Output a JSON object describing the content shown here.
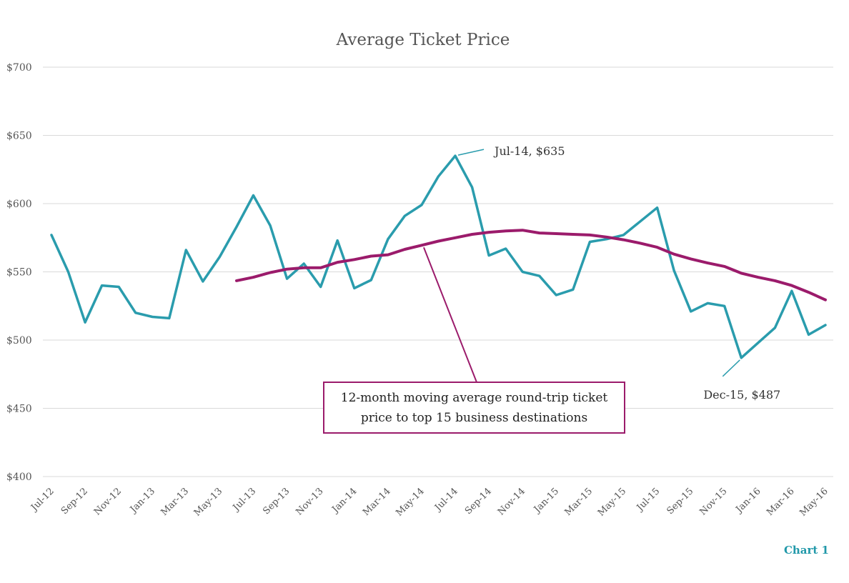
{
  "footer_label": "Chart 1",
  "colors": {
    "actual": "#2a9cad",
    "moving_average": "#9b1b6b",
    "grid": "#d9d9d9",
    "text": "#555555",
    "footer": "#2098a9"
  },
  "chart_data": {
    "type": "line",
    "title": "Average Ticket Price",
    "xlabel": "",
    "ylabel": "",
    "ylim": [
      400,
      700
    ],
    "yticks": [
      "$400",
      "$450",
      "$500",
      "$550",
      "$600",
      "$650",
      "$700"
    ],
    "grid": true,
    "x_tick_labels": [
      "Jul-12",
      "Sep-12",
      "Nov-12",
      "Jan-13",
      "Mar-13",
      "May-13",
      "Jul-13",
      "Sep-13",
      "Nov-13",
      "Jan-14",
      "Mar-14",
      "May-14",
      "Jul-14",
      "Sep-14",
      "Nov-14",
      "Jan-15",
      "Mar-15",
      "May-15",
      "Jul-15",
      "Sep-15",
      "Nov-15",
      "Jan-16",
      "Mar-16",
      "May-16"
    ],
    "categories": [
      "Jul-12",
      "Aug-12",
      "Sep-12",
      "Oct-12",
      "Nov-12",
      "Dec-12",
      "Jan-13",
      "Feb-13",
      "Mar-13",
      "Apr-13",
      "May-13",
      "Jun-13",
      "Jul-13",
      "Aug-13",
      "Sep-13",
      "Oct-13",
      "Nov-13",
      "Dec-13",
      "Jan-14",
      "Feb-14",
      "Mar-14",
      "Apr-14",
      "May-14",
      "Jun-14",
      "Jul-14",
      "Aug-14",
      "Sep-14",
      "Oct-14",
      "Nov-14",
      "Dec-14",
      "Jan-15",
      "Feb-15",
      "Mar-15",
      "Apr-15",
      "May-15",
      "Jun-15",
      "Jul-15",
      "Aug-15",
      "Sep-15",
      "Oct-15",
      "Nov-15",
      "Dec-15",
      "Jan-16",
      "Feb-16",
      "Mar-16",
      "Apr-16",
      "May-16"
    ],
    "series": [
      {
        "values": [
          577,
          550,
          513,
          540,
          539,
          520,
          517,
          516,
          566,
          543,
          561,
          583,
          606,
          584,
          545,
          556,
          539,
          573,
          538,
          544,
          574,
          591,
          599,
          620,
          635,
          612,
          562,
          567,
          550,
          547,
          533,
          537,
          572,
          574,
          577,
          587,
          597,
          551,
          521,
          527,
          525,
          487,
          498,
          509,
          536,
          504,
          511
        ]
      },
      {
        "values": [
          null,
          null,
          null,
          null,
          null,
          null,
          null,
          null,
          null,
          null,
          null,
          543.5,
          546,
          549.5,
          552,
          553,
          553,
          557,
          559,
          561.5,
          562.5,
          566.5,
          569.5,
          572.5,
          575,
          577.5,
          579,
          580,
          580.5,
          578.5,
          578,
          577.5,
          577,
          575.5,
          573.5,
          571,
          568,
          563,
          559.5,
          556.5,
          554,
          549,
          546,
          543.5,
          540,
          535,
          529.5
        ]
      }
    ],
    "annotations": [
      {
        "text": "Jul-14, $635",
        "x": "Jul-14",
        "y": 635
      },
      {
        "text": "Dec-15, $487",
        "x": "Dec-15",
        "y": 487
      }
    ],
    "callout": {
      "lines": [
        "12-month moving average round-trip ticket",
        "price to top 15 business destinations"
      ],
      "points_to": "May-14"
    }
  }
}
